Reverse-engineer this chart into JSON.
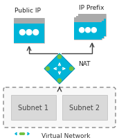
{
  "fig_width": 1.72,
  "fig_height": 2.03,
  "dpi": 100,
  "bg_color": "#ffffff",
  "title_public_ip": "Public IP",
  "title_ip_prefix": "IP Prefix",
  "label_nat": "NAT",
  "label_subnet1": "Subnet 1",
  "label_subnet2": "Subnet 2",
  "label_vnet": "Virtual Network",
  "cyan_color": "#00b4d8",
  "gray_icon": "#e0e0e0",
  "gray_bar": "#9e9e9e",
  "gray_box": "#d9d9d9",
  "arrow_color": "#404040",
  "dashed_border": "#888888",
  "green_dot": "#70c040",
  "vnet_chevron": "#00b4d8",
  "font_size": 6.5
}
